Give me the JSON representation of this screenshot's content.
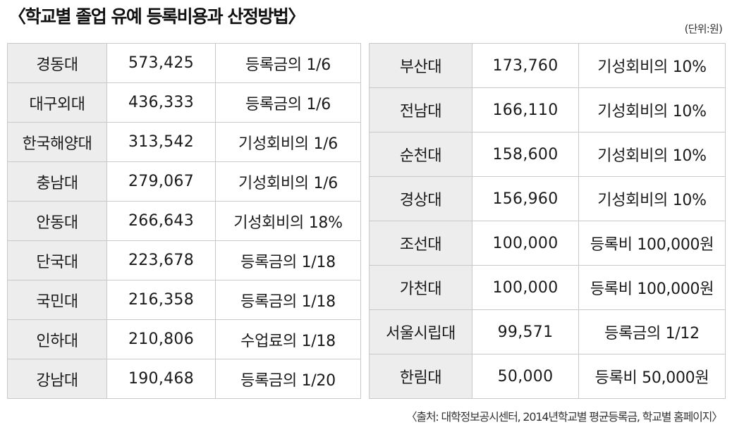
{
  "title": "〈학교별 졸업 유예 등록비용과 산정방법〉",
  "unit": "(단위:원)",
  "left_table": [
    {
      "school": "경동대",
      "amount": "573,425",
      "method": "등록금의 1/6"
    },
    {
      "school": "대구외대",
      "amount": "436,333",
      "method": "등록금의 1/6"
    },
    {
      "school": "한국해양대",
      "amount": "313,542",
      "method": "기성회비의 1/6"
    },
    {
      "school": "충남대",
      "amount": "279,067",
      "method": "기성회비의 1/6"
    },
    {
      "school": "안동대",
      "amount": "266,643",
      "method": "기성회비의 18%"
    },
    {
      "school": "단국대",
      "amount": "223,678",
      "method": "등록금의 1/18"
    },
    {
      "school": "국민대",
      "amount": "216,358",
      "method": "등록금의 1/18"
    },
    {
      "school": "인하대",
      "amount": "210,806",
      "method": "수업료의 1/18"
    },
    {
      "school": "강남대",
      "amount": "190,468",
      "method": "등록금의 1/20"
    }
  ],
  "right_table": [
    {
      "school": "부산대",
      "amount": "173,760",
      "method": "기성회비의 10%"
    },
    {
      "school": "전남대",
      "amount": "166,110",
      "method": "기성회비의 10%"
    },
    {
      "school": "순천대",
      "amount": "158,600",
      "method": "기성회비의 10%"
    },
    {
      "school": "경상대",
      "amount": "156,960",
      "method": "기성회비의 10%"
    },
    {
      "school": "조선대",
      "amount": "100,000",
      "method": "등록비 100,000원"
    },
    {
      "school": "가천대",
      "amount": "100,000",
      "method": "등록비 100,000원"
    },
    {
      "school": "서울시립대",
      "amount": "99,571",
      "method": "등록금의 1/12"
    },
    {
      "school": "한림대",
      "amount": "50,000",
      "method": "등록비 50,000원"
    }
  ],
  "source": "〈출처: 대학정보공시센터, 2014년학교별 평균등록금, 학교별 홈페이지〉"
}
